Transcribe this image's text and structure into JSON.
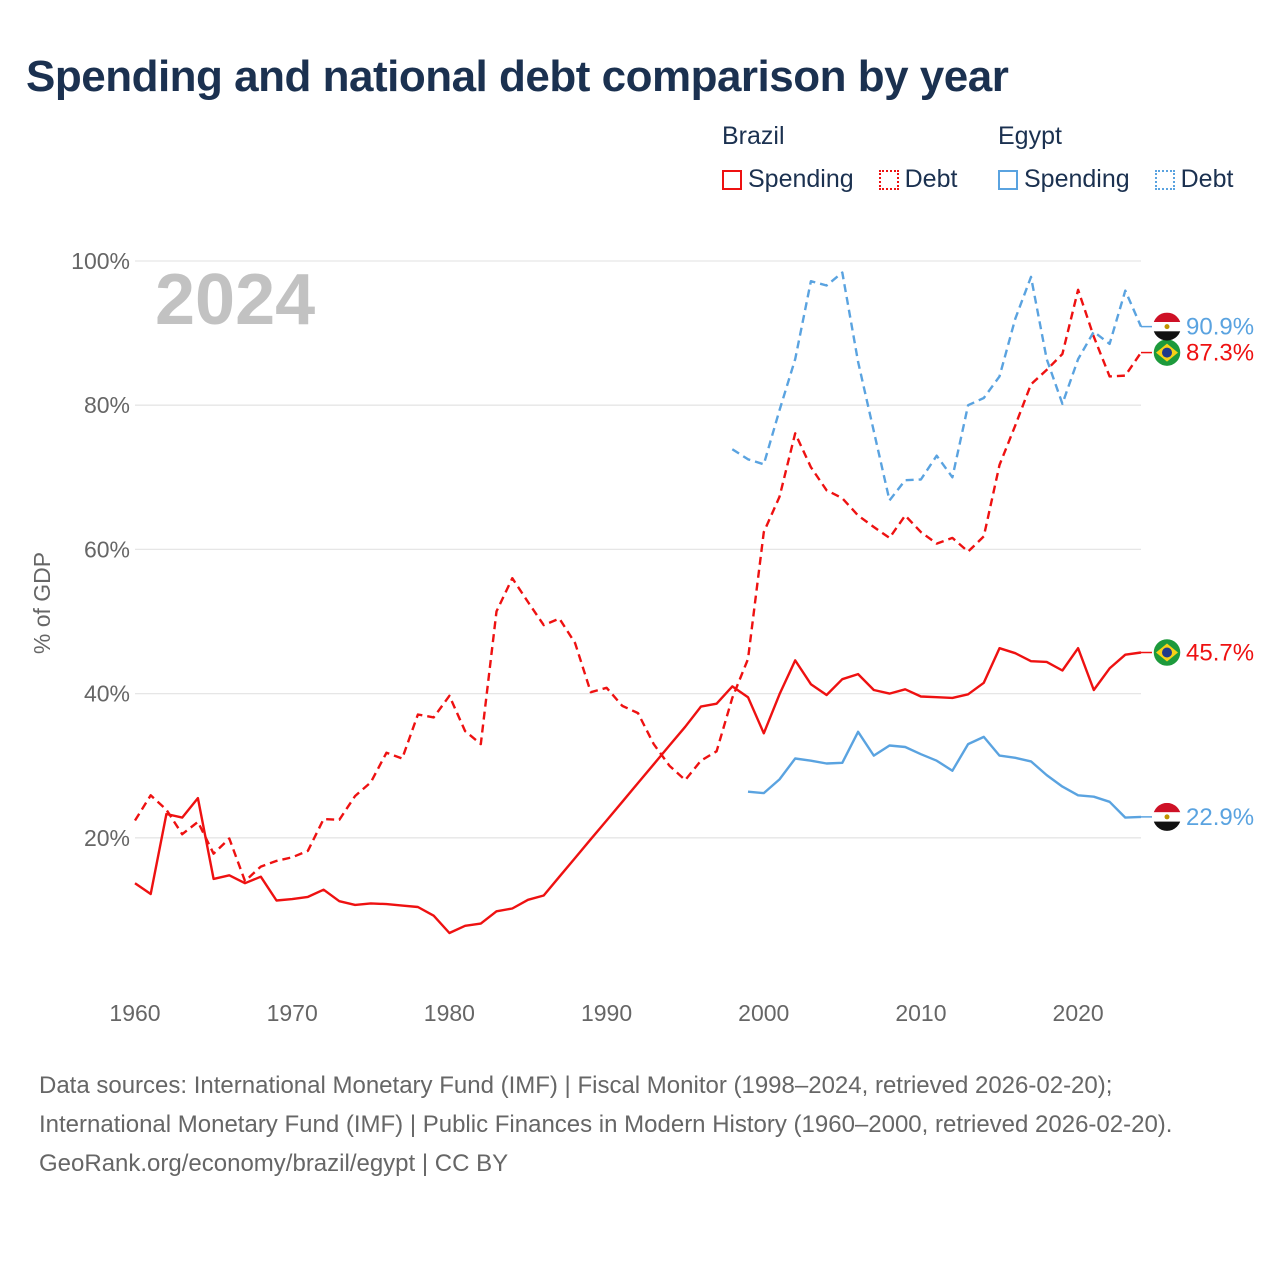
{
  "title": "Spending and national debt comparison by year",
  "legend": {
    "groups": [
      {
        "name": "Brazil",
        "color": "#ee1111",
        "items": [
          "Spending",
          "Debt"
        ]
      },
      {
        "name": "Egypt",
        "color": "#5aa3e0",
        "items": [
          "Spending",
          "Debt"
        ]
      }
    ]
  },
  "year_watermark": "2024",
  "footer": {
    "sources": "Data sources: International Monetary Fund (IMF) | Fiscal Monitor (1998–2024, retrieved 2026-02-20); International Monetary Fund (IMF) | Public Finances in Modern History (1960–2000, retrieved 2026-02-20).",
    "credit": "GeoRank.org/economy/brazil/egypt | CC BY"
  },
  "chart_data": {
    "type": "line",
    "title": "Spending and national debt comparison by year",
    "xlabel": "",
    "ylabel": "% of GDP",
    "xlim": [
      1960,
      2024
    ],
    "ylim": [
      0,
      100
    ],
    "x_ticks": [
      1960,
      1970,
      1980,
      1990,
      2000,
      2010,
      2020
    ],
    "y_ticks": [
      20,
      40,
      60,
      80,
      100
    ],
    "y_tick_labels": [
      "20%",
      "40%",
      "60%",
      "80%",
      "100%"
    ],
    "grid": true,
    "legend_position": "top-right",
    "series": [
      {
        "name": "Brazil Spending",
        "country": "Brazil",
        "measure": "Spending",
        "color": "#ee1111",
        "dash": false,
        "end_label": "45.7%",
        "x": [
          1960,
          1961,
          1962,
          1963,
          1964,
          1965,
          1966,
          1967,
          1968,
          1969,
          1970,
          1971,
          1972,
          1973,
          1974,
          1975,
          1976,
          1977,
          1978,
          1979,
          1980,
          1981,
          1982,
          1983,
          1984,
          1985,
          1986,
          1987,
          1988,
          1989,
          1990,
          1991,
          1992,
          1993,
          1994,
          1995,
          1996,
          1997,
          1998,
          1999,
          2000,
          2001,
          2002,
          2003,
          2004,
          2005,
          2006,
          2007,
          2008,
          2009,
          2010,
          2011,
          2012,
          2013,
          2014,
          2015,
          2016,
          2017,
          2018,
          2019,
          2020,
          2021,
          2022,
          2023,
          2024
        ],
        "values": [
          13.7,
          12.2,
          23.3,
          22.8,
          25.5,
          14.3,
          14.8,
          13.7,
          14.6,
          11.3,
          11.5,
          11.8,
          12.8,
          11.2,
          10.7,
          10.9,
          10.8,
          10.6,
          10.4,
          9.2,
          6.8,
          7.8,
          8.1,
          9.8,
          10.2,
          11.4,
          12,
          14.6,
          17.2,
          19.8,
          22.4,
          25,
          27.6,
          30.2,
          32.8,
          35.4,
          38.2,
          38.6,
          41,
          39.5,
          34.5,
          39.9,
          44.6,
          41.3,
          39.8,
          42,
          42.7,
          40.5,
          40,
          40.6,
          39.6,
          39.5,
          39.4,
          39.9,
          41.5,
          46.3,
          45.6,
          44.5,
          44.4,
          43.2,
          46.3,
          40.5,
          43.5,
          45.4,
          45.7
        ]
      },
      {
        "name": "Brazil Debt",
        "country": "Brazil",
        "measure": "Debt",
        "color": "#ee1111",
        "dash": true,
        "end_label": "87.3%",
        "x": [
          1960,
          1961,
          1962,
          1963,
          1964,
          1965,
          1966,
          1967,
          1968,
          1969,
          1970,
          1971,
          1972,
          1973,
          1974,
          1975,
          1976,
          1977,
          1978,
          1979,
          1980,
          1981,
          1982,
          1983,
          1984,
          1985,
          1986,
          1987,
          1988,
          1989,
          1990,
          1991,
          1992,
          1993,
          1994,
          1995,
          1996,
          1997,
          1998,
          1999,
          2000,
          2001,
          2002,
          2003,
          2004,
          2005,
          2006,
          2007,
          2008,
          2009,
          2010,
          2011,
          2012,
          2013,
          2014,
          2015,
          2016,
          2017,
          2018,
          2019,
          2020,
          2021,
          2022,
          2023,
          2024
        ],
        "values": [
          22.4,
          25.9,
          23.9,
          20.5,
          22.2,
          17.8,
          19.9,
          14,
          16,
          16.8,
          17.3,
          18.2,
          22.6,
          22.5,
          25.8,
          27.7,
          31.8,
          31,
          37.1,
          36.7,
          39.7,
          34.8,
          33,
          51.4,
          56,
          52.7,
          49.5,
          50.4,
          47,
          40.2,
          40.8,
          38.3,
          37.3,
          33,
          30,
          28,
          30.7,
          32,
          39.4,
          44.8,
          62.4,
          67.3,
          76.1,
          71.4,
          68.2,
          67.1,
          64.7,
          63.1,
          61.6,
          64.7,
          62.4,
          60.8,
          61.6,
          59.7,
          61.8,
          71.7,
          77.2,
          82.9,
          84.9,
          87.1,
          96,
          89.5,
          84,
          84.1,
          87.3
        ]
      },
      {
        "name": "Egypt Spending",
        "country": "Egypt",
        "measure": "Spending",
        "color": "#5aa3e0",
        "dash": false,
        "end_label": "22.9%",
        "x": [
          1999,
          2000,
          2001,
          2002,
          2003,
          2004,
          2005,
          2006,
          2007,
          2008,
          2009,
          2010,
          2011,
          2012,
          2013,
          2014,
          2015,
          2016,
          2017,
          2018,
          2019,
          2020,
          2021,
          2022,
          2023,
          2024
        ],
        "values": [
          26.4,
          26.2,
          28.1,
          31,
          30.7,
          30.3,
          30.4,
          34.7,
          31.4,
          32.8,
          32.6,
          31.6,
          30.7,
          29.3,
          33,
          34,
          31.4,
          31.1,
          30.6,
          28.7,
          27.1,
          25.9,
          25.7,
          25,
          22.8,
          22.9
        ]
      },
      {
        "name": "Egypt Debt",
        "country": "Egypt",
        "measure": "Debt",
        "color": "#5aa3e0",
        "dash": true,
        "end_label": "90.9%",
        "x": [
          1998,
          1999,
          2000,
          2001,
          2002,
          2003,
          2004,
          2005,
          2006,
          2007,
          2008,
          2009,
          2010,
          2011,
          2012,
          2013,
          2014,
          2015,
          2016,
          2017,
          2018,
          2019,
          2020,
          2021,
          2022,
          2023,
          2024
        ],
        "values": [
          73.9,
          72.5,
          71.8,
          79.3,
          86.4,
          97.2,
          96.6,
          98.4,
          86,
          76.4,
          66.8,
          69.6,
          69.7,
          73,
          70,
          80,
          81,
          84,
          92,
          97.8,
          86.4,
          80.2,
          86.4,
          90.2,
          88.5,
          95.9,
          90.9
        ]
      }
    ]
  }
}
